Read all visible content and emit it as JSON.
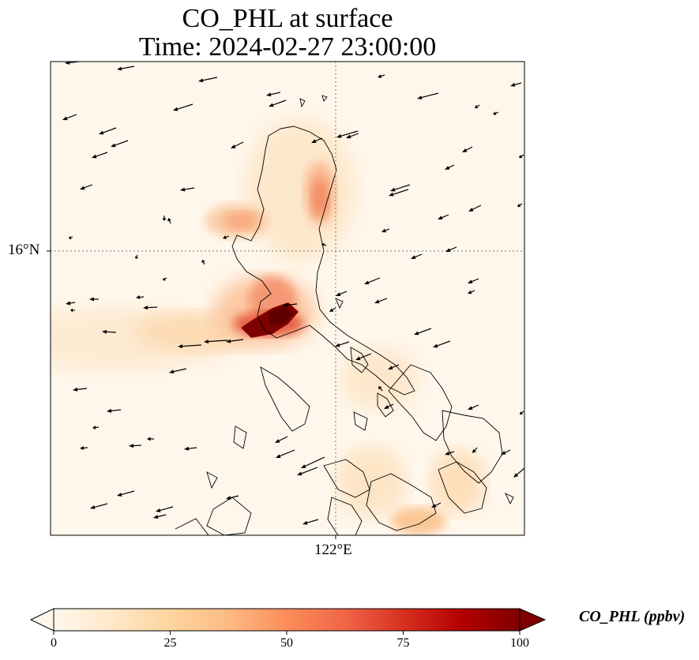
{
  "title": {
    "line1": "CO_PHL at surface",
    "line2": "Time: 2024-02-27 23:00:00"
  },
  "axes": {
    "lat_label": "16°N",
    "lon_label": "122°E"
  },
  "colorbar": {
    "label": "CO_PHL (ppbv)",
    "ticks": [
      "0",
      "25",
      "50",
      "75",
      "100"
    ],
    "min": 0,
    "max": 100,
    "extend": "both",
    "colormap": "OrRd",
    "colors": [
      "#fff7ec",
      "#fee8c8",
      "#fdd49e",
      "#fdbb84",
      "#fc8d59",
      "#ef6548",
      "#d7301f",
      "#b30000",
      "#7f0000"
    ]
  },
  "map": {
    "gridlines": "dotted",
    "background_color": "#fff7ec",
    "coastline_color": "#000000",
    "wind_vectors": "arrows mostly pointing west-southwest"
  }
}
